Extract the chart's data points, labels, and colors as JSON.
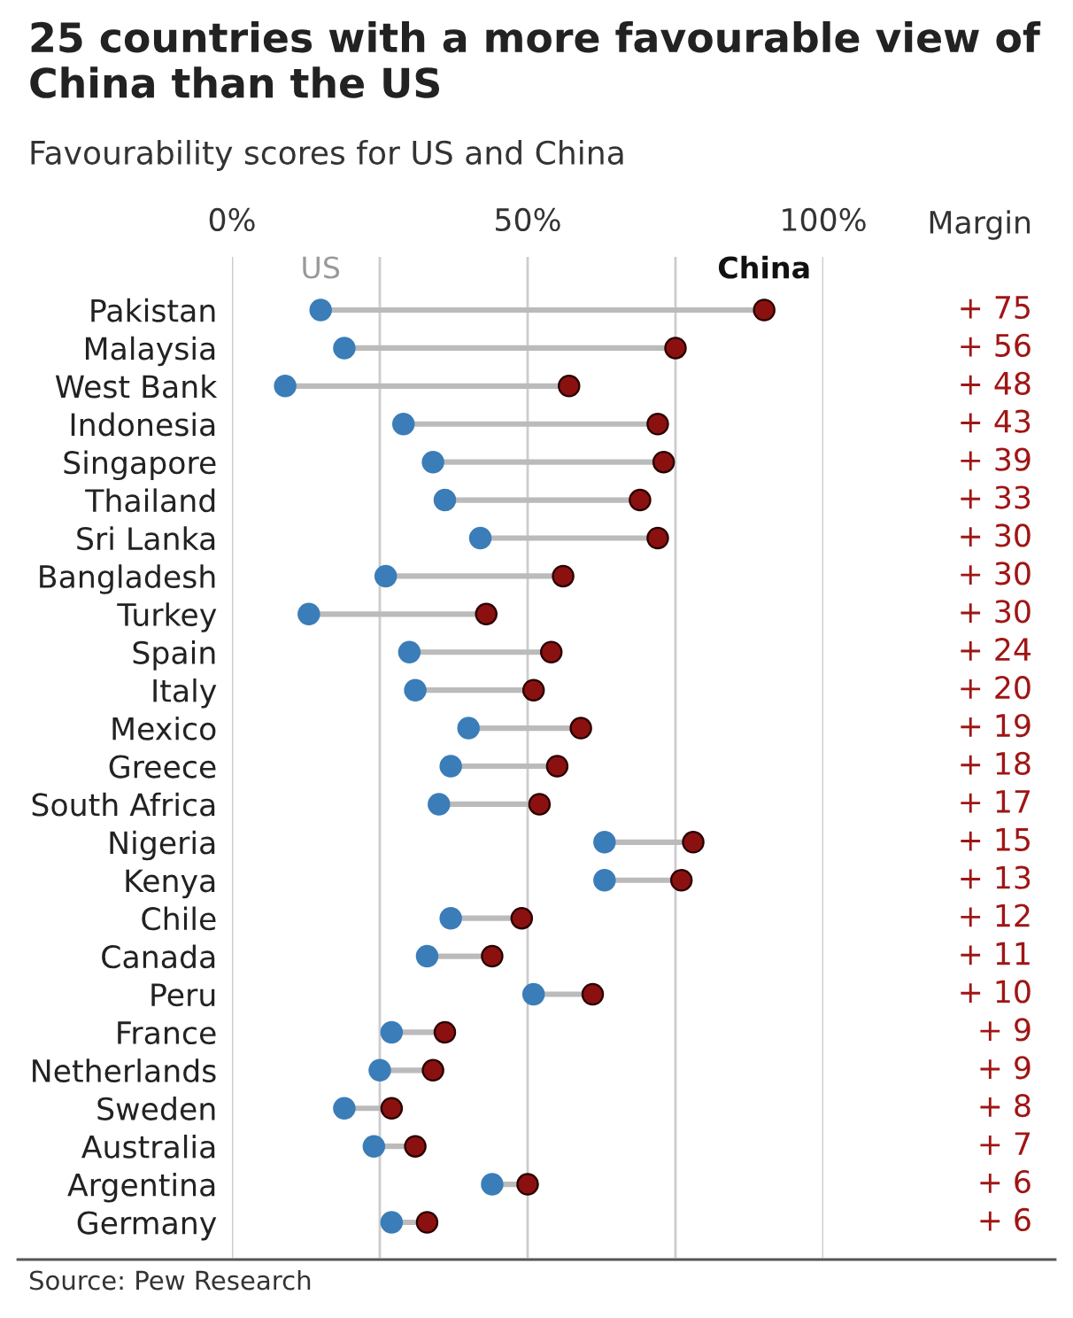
{
  "chart_data": {
    "type": "scatter",
    "orientation": "horizontal",
    "title": "25 countries with a more favourable view of China than the US",
    "subtitle": "Favourability scores for US and China",
    "categories": [
      "Pakistan",
      "Malaysia",
      "West Bank",
      "Indonesia",
      "Singapore",
      "Thailand",
      "Sri Lanka",
      "Bangladesh",
      "Turkey",
      "Spain",
      "Italy",
      "Mexico",
      "Greece",
      "South Africa",
      "Nigeria",
      "Kenya",
      "Chile",
      "Canada",
      "Peru",
      "France",
      "Netherlands",
      "Sweden",
      "Australia",
      "Argentina",
      "Germany"
    ],
    "series": [
      {
        "name": "US",
        "color": "#3b7db8",
        "values": [
          15,
          19,
          9,
          29,
          34,
          36,
          42,
          26,
          13,
          30,
          31,
          40,
          37,
          35,
          63,
          63,
          37,
          33,
          51,
          27,
          25,
          19,
          24,
          44,
          27
        ]
      },
      {
        "name": "China",
        "color": "#8b1111",
        "values": [
          90,
          75,
          57,
          72,
          73,
          69,
          72,
          56,
          43,
          54,
          51,
          59,
          55,
          52,
          78,
          76,
          49,
          44,
          61,
          36,
          34,
          27,
          31,
          50,
          33
        ]
      }
    ],
    "xlim": [
      0,
      100
    ],
    "xticks": [
      {
        "value": 0,
        "label": "0%"
      },
      {
        "value": 25,
        "label": null
      },
      {
        "value": 50,
        "label": "50%"
      },
      {
        "value": 75,
        "label": null
      },
      {
        "value": 100,
        "label": "100%"
      }
    ],
    "grid": "x",
    "marker": "circle",
    "annotations": [
      "Margin",
      "+ 75",
      "+ 56",
      "+ 48",
      "+ 43",
      "+ 39",
      "+ 33",
      "+ 30",
      "+ 30",
      "+ 30",
      "+ 24",
      "+ 20",
      "+ 19",
      "+ 18",
      "+ 17",
      "+ 15",
      "+ 13",
      "+ 12",
      "+ 11",
      "+ 10",
      "+ 9",
      "+ 9",
      "+ 8",
      "+ 7",
      "+ 6",
      "+ 6",
      "Source: Pew Research"
    ]
  }
}
